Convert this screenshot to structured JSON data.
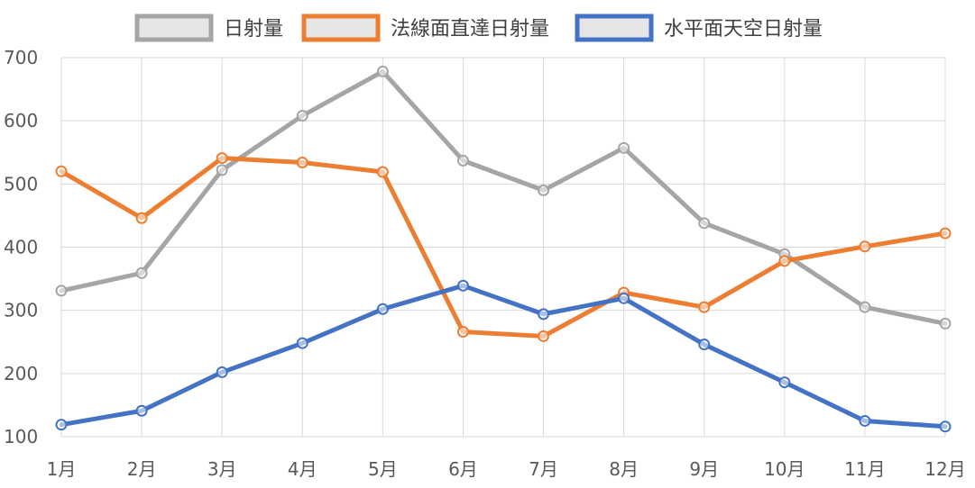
{
  "chart_data": {
    "type": "line",
    "categories": [
      "1月",
      "2月",
      "3月",
      "4月",
      "5月",
      "6月",
      "7月",
      "8月",
      "9月",
      "10月",
      "11月",
      "12月"
    ],
    "ylim": [
      100,
      700
    ],
    "y_ticks": [
      100,
      200,
      300,
      400,
      500,
      600,
      700
    ],
    "grid": true,
    "legend_position": "top",
    "series": [
      {
        "name": "日射量",
        "color": "#a5a5a5",
        "values": [
          331,
          359,
          522,
          608,
          678,
          537,
          490,
          557,
          438,
          389,
          305,
          279
        ]
      },
      {
        "name": "法線面直達日射量",
        "color": "#ed7d31",
        "values": [
          520,
          446,
          541,
          534,
          519,
          266,
          259,
          328,
          305,
          378,
          401,
          422
        ]
      },
      {
        "name": "水平面天空日射量",
        "color": "#4472c4",
        "values": [
          119,
          141,
          202,
          248,
          302,
          339,
          294,
          319,
          246,
          186,
          125,
          116
        ]
      }
    ]
  }
}
